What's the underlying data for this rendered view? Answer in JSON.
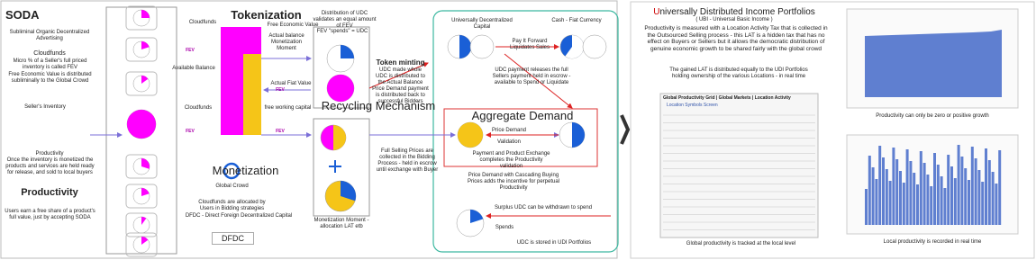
{
  "soda": {
    "title": "SODA",
    "subtitle": "Subliminal Organic Decentralized Advertising",
    "cloudfunds": "Cloudfunds",
    "cloudfunds_text1": "Micro % of a Seller's full priced inventory is called FEV",
    "cloudfunds_text2": "Free Economic Value is distributed subliminally to the Global Crowd",
    "inventory": "Seller's Inventory",
    "productivity_label": "Productivity",
    "productivity_text": "Once the inventory is monetized the products and services are held ready for release, and sold to local buyers",
    "productivity_title": "Productivity",
    "productivity_note": "Users earn a free share of a product's full value, just by accepting SODA"
  },
  "tokenization": {
    "cloudfunds_top": "Cloudfunds",
    "fev_labels": [
      "FEV",
      "FEV",
      "FEV",
      "FEV"
    ],
    "title": "Tokenization",
    "fev_name": "Free Economic Value",
    "actual_balance": "Actual balance Monetization Moment",
    "available_balance": "Available Balance",
    "distribution": "Distribution of UDC validates an equal amount of FEV",
    "fev_spends": "FEV \"spends\" = UDC",
    "token_minting": "Token minting",
    "udc_whole": "UDC made whole",
    "udc_distributed": "UDC is distributed to the Actual Balance",
    "actual_fiat": "Actual Fiat Value",
    "cloudfunds_mid": "Cloudfunds",
    "free_capital": "free working capital"
  },
  "recycling": {
    "title": "Recycling Mechanism",
    "price_demand_payment": "Price Demand payment is distributed back to successful Bidders",
    "full_prices": "Full Selling Prices are collected in the Bidding Process - held in escrow until exchange with Buyer",
    "moment": "Monetization Moment - allocation LAT etb"
  },
  "monetization": {
    "title": "Monetization",
    "crowd": "Global Crowd",
    "allocated": "Cloudfunds are allocated by Users in Bidding strategies",
    "dfdc_text": "DFDC  - Direct Foreign Decentralized Capital",
    "dfdc": "DFDC"
  },
  "demand": {
    "udc": "Universally Decentralized Capital",
    "cash": "Cash - Fiat Currency",
    "pay_forward": "Pay It Forward Liquidates Sales",
    "release": "UDC payment releases the full Sellers payment held in escrow - available to Spend or Liquidate",
    "title": "Aggregate Demand",
    "price_demand": "Price Demand",
    "validation": "Validation",
    "exchange": "Payment and Product Exchange completes the Productivity validation",
    "cascading": "Price Demand with Cascading Buying Prices adds the incentive for perpetual Productivity",
    "surplus": "Surplus UDC can be withdrawn to spend",
    "spends": "Spends",
    "stored": "UDC is stored in UDI Portfolios"
  },
  "udi": {
    "title": "Universally Distributed Income Portfolios",
    "subtitle": "( UBI - Universal Basic Income )",
    "text": "Productivity is measured with a Location Activity Tax that is collected in the Outsourced Selling process - this LAT is a hidden tax that has no effect on Buyers or Sellers but it allows the democratic distribution of genuine economic growth to be shared fairly with the global crowd",
    "gained": "The gained LAT is distributed equally to the UDI Portfolios holding ownership of the various Locations - in real time",
    "grid_tabs": "Global Productivity Grid  |  Global Markets  |  Location Activity",
    "grid_screen": "Location Symbols Screen",
    "grid_caption": "Global productivity is tracked at the local level",
    "chart1_caption": "Productivity can only be zero or positive growth",
    "chart2_caption": "Local productivity is recorded in real time"
  }
}
